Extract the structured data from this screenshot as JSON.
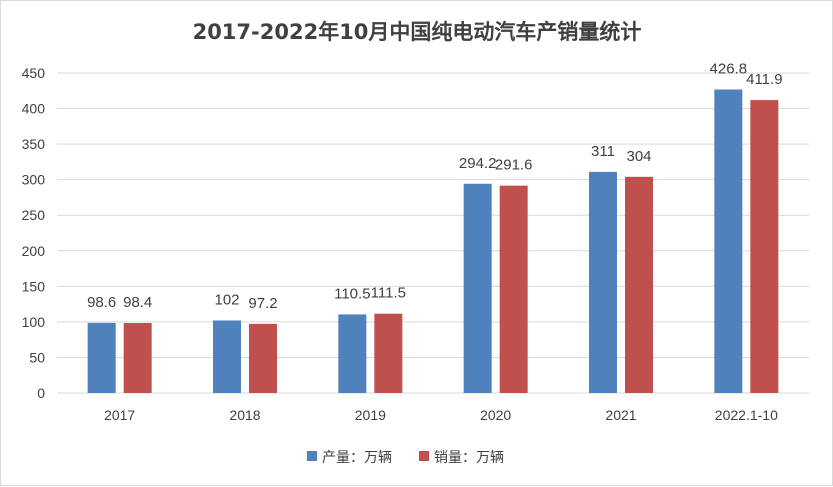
{
  "chart_data": {
    "type": "bar",
    "title": "2017-2022年10月中国纯电动汽车产销量统计",
    "categories": [
      "2017",
      "2018",
      "2019",
      "2020",
      "2021",
      "2022.1-10"
    ],
    "series": [
      {
        "name": "产量：万辆",
        "values": [
          98.6,
          102,
          110.5,
          294.2,
          311,
          426.8
        ],
        "color": "#4f81bd"
      },
      {
        "name": "销量：万辆",
        "values": [
          98.4,
          97.2,
          111.5,
          291.6,
          304,
          411.9
        ],
        "color": "#c0504d"
      }
    ],
    "data_labels": [
      [
        "98.6",
        "102",
        "110.5",
        "294.2",
        "311",
        "426.8"
      ],
      [
        "98.4",
        "97.2",
        "111.5",
        "291.6",
        "304",
        "411.9"
      ]
    ],
    "ylim": [
      0,
      450
    ],
    "yticks": [
      "0",
      "50",
      "100",
      "150",
      "200",
      "250",
      "300",
      "350",
      "400",
      "450"
    ],
    "xlabel": "",
    "ylabel": "",
    "grid": true,
    "legend_position": "bottom",
    "grid_color": "#d9d9d9",
    "text_color": "#404040"
  }
}
